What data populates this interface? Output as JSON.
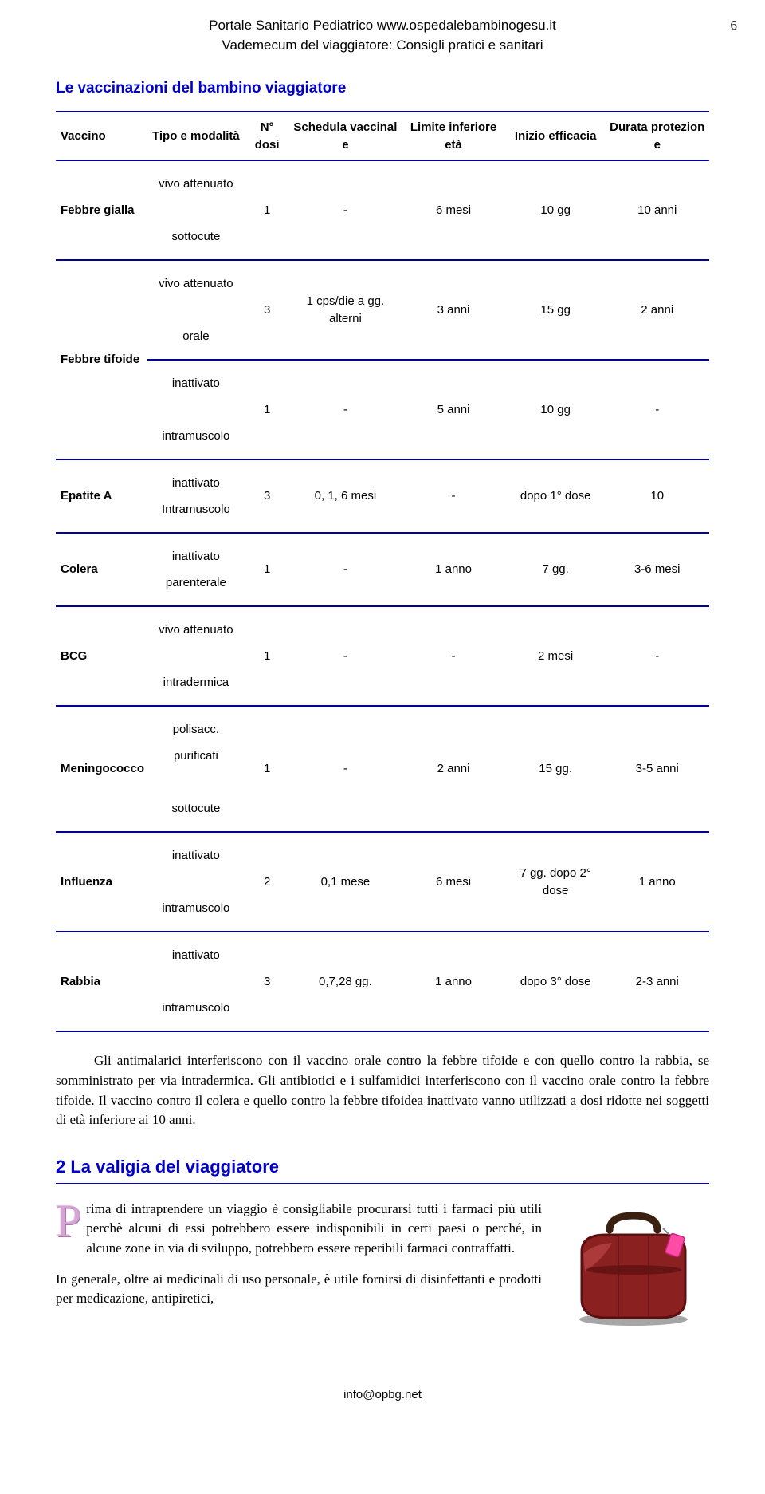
{
  "header": {
    "line1": "Portale Sanitario Pediatrico www.ospedalebambinogesu.it",
    "line2": "Vademecum del viaggiatore: Consigli pratici e sanitari",
    "page_number": "6"
  },
  "section1_title": "Le vaccinazioni del bambino viaggiatore",
  "table": {
    "headers": [
      "Vaccino",
      "Tipo e modalità",
      "N° dosi",
      "Schedula vaccinal e",
      "Limite inferiore età",
      "Inizio efficacia",
      "Durata protezion e"
    ],
    "rows": [
      {
        "name": "Febbre gialla",
        "modal": "vivo attenuato<br><br>sottocute",
        "dosi": "1",
        "sched": "-",
        "lim": "6 mesi",
        "inizio": "10 gg",
        "durata": "10 anni",
        "rowspan": 1
      },
      {
        "name": "Febbre tifoide",
        "rowspan": 2,
        "sub": [
          {
            "modal": "vivo attenuato<br><br>orale",
            "dosi": "3",
            "sched": "1 cps/die a gg. alterni",
            "lim": "3 anni",
            "inizio": "15 gg",
            "durata": "2 anni"
          },
          {
            "modal": "inattivato<br><br>intramuscolo",
            "dosi": "1",
            "sched": "-",
            "lim": "5 anni",
            "inizio": "10 gg",
            "durata": "-"
          }
        ]
      },
      {
        "name": "Epatite A",
        "modal": "inattivato<br>Intramuscolo",
        "dosi": "3",
        "sched": "0, 1, 6 mesi",
        "lim": "-",
        "inizio": "dopo 1° dose",
        "durata": "10",
        "rowspan": 1
      },
      {
        "name": "Colera",
        "modal": "inattivato<br>parenterale",
        "dosi": "1",
        "sched": "-",
        "lim": "1 anno",
        "inizio": "7 gg.",
        "durata": "3-6 mesi",
        "rowspan": 1
      },
      {
        "name": "BCG",
        "modal": "vivo attenuato<br><br>intradermica",
        "dosi": "1",
        "sched": "-",
        "lim": "-",
        "inizio": "2 mesi",
        "durata": "-",
        "rowspan": 1
      },
      {
        "name": "Meningococco",
        "modal": "polisacc. purificati<br><br>sottocute",
        "dosi": "1",
        "sched": "-",
        "lim": "2 anni",
        "inizio": "15 gg.",
        "durata": "3-5 anni",
        "rowspan": 1
      },
      {
        "name": "Influenza",
        "modal": "inattivato<br><br>intramuscolo",
        "dosi": "2",
        "sched": "0,1 mese",
        "lim": "6 mesi",
        "inizio": "7 gg. dopo 2° dose",
        "durata": "1 anno",
        "rowspan": 1
      },
      {
        "name": "Rabbia",
        "modal": "inattivato<br><br>intramuscolo",
        "dosi": "3",
        "sched": "0,7,28 gg.",
        "lim": "1 anno",
        "inizio": "dopo 3° dose",
        "durata": "2-3 anni",
        "rowspan": 1
      }
    ]
  },
  "para1": "Gli antimalarici interferiscono con il vaccino orale contro la febbre tifoide e con quello contro la rabbia, se somministrato per via intradermica. Gli antibiotici e i sulfamidici interferiscono con il vaccino orale contro la febbre tifoide. Il vaccino contro il colera e quello contro la febbre tifoidea inattivato vanno utilizzati a dosi ridotte nei soggetti di età inferiore ai 10 anni.",
  "chapter2": "2  La valigia del viaggiatore",
  "para2_drop": "P",
  "para2a": "rima di intraprendere un viaggio è consigliabile procurarsi tutti i farmaci più utili perchè alcuni di essi potrebbero essere indisponibili in certi paesi o perché, in alcune zone in via di sviluppo, potrebbero essere reperibili farmaci contraffatti.",
  "para2b": "In generale, oltre ai medicinali di uso personale, è utile fornirsi di disinfettanti e prodotti per medicazione, antipiretici,",
  "footer": "info@opbg.net",
  "colors": {
    "blue_heading": "#0000cc",
    "table_border": "#000099",
    "dropcap": "#d4a5d4",
    "luggage_body": "#8b2020",
    "luggage_dark": "#5a1010",
    "luggage_handle": "#3a2010",
    "luggage_tag": "#ff4da6",
    "background": "#ffffff"
  }
}
